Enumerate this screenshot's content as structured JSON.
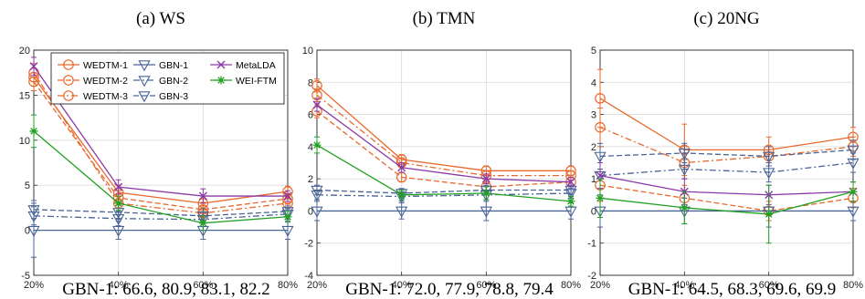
{
  "figure": {
    "xticks": [
      "20%",
      "40%",
      "60%",
      "80%"
    ]
  },
  "legend": [
    {
      "name": "WEDTM-1",
      "color": "#e8692d",
      "dash": "solid",
      "marker": "circle"
    },
    {
      "name": "WEDTM-2",
      "color": "#e8692d",
      "dash": "dash",
      "marker": "circle"
    },
    {
      "name": "WEDTM-3",
      "color": "#e8692d",
      "dash": "dashdot",
      "marker": "circle"
    },
    {
      "name": "GBN-1",
      "color": "#4a6496",
      "dash": "solid",
      "marker": "triangle-down"
    },
    {
      "name": "GBN-2",
      "color": "#4a6496",
      "dash": "dashdot",
      "marker": "triangle-down"
    },
    {
      "name": "GBN-3",
      "color": "#4a6496",
      "dash": "dash",
      "marker": "triangle-down"
    },
    {
      "name": "MetaLDA",
      "color": "#8a3aa8",
      "dash": "solid",
      "marker": "x"
    },
    {
      "name": "WEI-FTM",
      "color": "#22a022",
      "dash": "solid",
      "marker": "star"
    }
  ],
  "chart_data": [
    {
      "type": "line",
      "title": "(a) WS",
      "caption": "GBN-1: 66.6, 80.9, 83.1, 82.2",
      "categories": [
        "20%",
        "40%",
        "60%",
        "80%"
      ],
      "ylim": [
        -5,
        20
      ],
      "yticks": [
        -5,
        0,
        5,
        10,
        15,
        20
      ],
      "grid": true,
      "legend_position": "top-right",
      "series": [
        {
          "name": "WEDTM-1",
          "values": [
            17.0,
            4.2,
            3.0,
            4.3
          ],
          "err": [
            1.0,
            0.8,
            0.8,
            0.6
          ]
        },
        {
          "name": "WEDTM-2",
          "values": [
            16.5,
            3.6,
            2.3,
            3.5
          ],
          "err": [
            1.0,
            0.8,
            0.8,
            0.6
          ]
        },
        {
          "name": "WEDTM-3",
          "values": [
            17.5,
            3.0,
            1.9,
            3.0
          ],
          "err": [
            1.0,
            0.8,
            0.8,
            0.6
          ]
        },
        {
          "name": "GBN-1",
          "values": [
            0.0,
            0.0,
            0.0,
            0.0
          ],
          "err": [
            3.0,
            1.0,
            1.0,
            1.0
          ]
        },
        {
          "name": "GBN-2",
          "values": [
            1.6,
            1.3,
            1.2,
            1.8
          ],
          "err": [
            1.0,
            0.8,
            0.8,
            0.6
          ]
        },
        {
          "name": "GBN-3",
          "values": [
            2.3,
            2.0,
            1.6,
            2.1
          ],
          "err": [
            1.0,
            0.8,
            0.8,
            0.6
          ]
        },
        {
          "name": "MetaLDA",
          "values": [
            18.2,
            4.8,
            3.8,
            3.8
          ],
          "err": [
            1.0,
            0.8,
            0.8,
            0.6
          ]
        },
        {
          "name": "WEI-FTM",
          "values": [
            11.0,
            3.0,
            0.8,
            1.5
          ],
          "err": [
            1.8,
            0.8,
            0.8,
            0.6
          ]
        }
      ]
    },
    {
      "type": "line",
      "title": "(b) TMN",
      "caption": "GBN-1: 72.0, 77.9, 78.8, 79.4",
      "categories": [
        "20%",
        "40%",
        "60%",
        "80%"
      ],
      "ylim": [
        -4,
        10
      ],
      "yticks": [
        -4,
        -2,
        0,
        2,
        4,
        6,
        8,
        10
      ],
      "grid": true,
      "series": [
        {
          "name": "WEDTM-1",
          "values": [
            7.8,
            3.2,
            2.5,
            2.5
          ],
          "err": [
            0.4,
            0.3,
            0.3,
            0.3
          ]
        },
        {
          "name": "WEDTM-2",
          "values": [
            6.2,
            2.1,
            1.5,
            1.8
          ],
          "err": [
            0.4,
            0.3,
            0.3,
            0.3
          ]
        },
        {
          "name": "WEDTM-3",
          "values": [
            7.2,
            3.0,
            2.2,
            2.2
          ],
          "err": [
            0.4,
            0.3,
            0.3,
            0.3
          ]
        },
        {
          "name": "GBN-1",
          "values": [
            0.0,
            0.0,
            0.0,
            0.0
          ],
          "err": [
            0.6,
            0.5,
            0.6,
            0.5
          ]
        },
        {
          "name": "GBN-2",
          "values": [
            1.0,
            0.9,
            1.0,
            1.1
          ],
          "err": [
            0.3,
            0.3,
            0.3,
            0.3
          ]
        },
        {
          "name": "GBN-3",
          "values": [
            1.3,
            1.1,
            1.3,
            1.3
          ],
          "err": [
            0.3,
            0.3,
            0.3,
            0.3
          ]
        },
        {
          "name": "MetaLDA",
          "values": [
            6.6,
            2.7,
            2.0,
            1.8
          ],
          "err": [
            0.4,
            0.3,
            0.3,
            0.3
          ]
        },
        {
          "name": "WEI-FTM",
          "values": [
            4.1,
            1.0,
            1.1,
            0.6
          ],
          "err": [
            0.5,
            0.3,
            0.4,
            0.3
          ]
        }
      ]
    },
    {
      "type": "line",
      "title": "(c) 20NG",
      "caption": "GBN-1: 64.5, 68.3, 69.6, 69.9",
      "categories": [
        "20%",
        "40%",
        "60%",
        "80%"
      ],
      "ylim": [
        -2,
        5
      ],
      "yticks": [
        -2,
        -1,
        0,
        1,
        2,
        3,
        4,
        5
      ],
      "grid": true,
      "series": [
        {
          "name": "WEDTM-1",
          "values": [
            3.5,
            1.9,
            1.9,
            2.3
          ],
          "err": [
            0.9,
            0.8,
            0.4,
            0.3
          ]
        },
        {
          "name": "WEDTM-2",
          "values": [
            0.8,
            0.4,
            0.0,
            0.4
          ],
          "err": [
            0.5,
            0.4,
            0.3,
            0.3
          ]
        },
        {
          "name": "WEDTM-3",
          "values": [
            2.6,
            1.5,
            1.7,
            2.0
          ],
          "err": [
            0.6,
            0.5,
            0.3,
            0.3
          ]
        },
        {
          "name": "GBN-1",
          "values": [
            0.0,
            0.0,
            0.0,
            0.0
          ],
          "err": [
            0.5,
            0.4,
            0.5,
            0.3
          ]
        },
        {
          "name": "GBN-2",
          "values": [
            1.1,
            1.3,
            1.2,
            1.5
          ],
          "err": [
            0.4,
            0.3,
            0.3,
            0.3
          ]
        },
        {
          "name": "GBN-3",
          "values": [
            1.7,
            1.8,
            1.7,
            1.9
          ],
          "err": [
            0.4,
            0.3,
            0.3,
            0.3
          ]
        },
        {
          "name": "MetaLDA",
          "values": [
            1.1,
            0.6,
            0.5,
            0.6
          ],
          "err": [
            0.4,
            0.4,
            0.3,
            0.3
          ]
        },
        {
          "name": "WEI-FTM",
          "values": [
            0.4,
            0.1,
            -0.1,
            0.6
          ],
          "err": [
            0.6,
            0.5,
            0.9,
            0.3
          ]
        }
      ]
    }
  ]
}
